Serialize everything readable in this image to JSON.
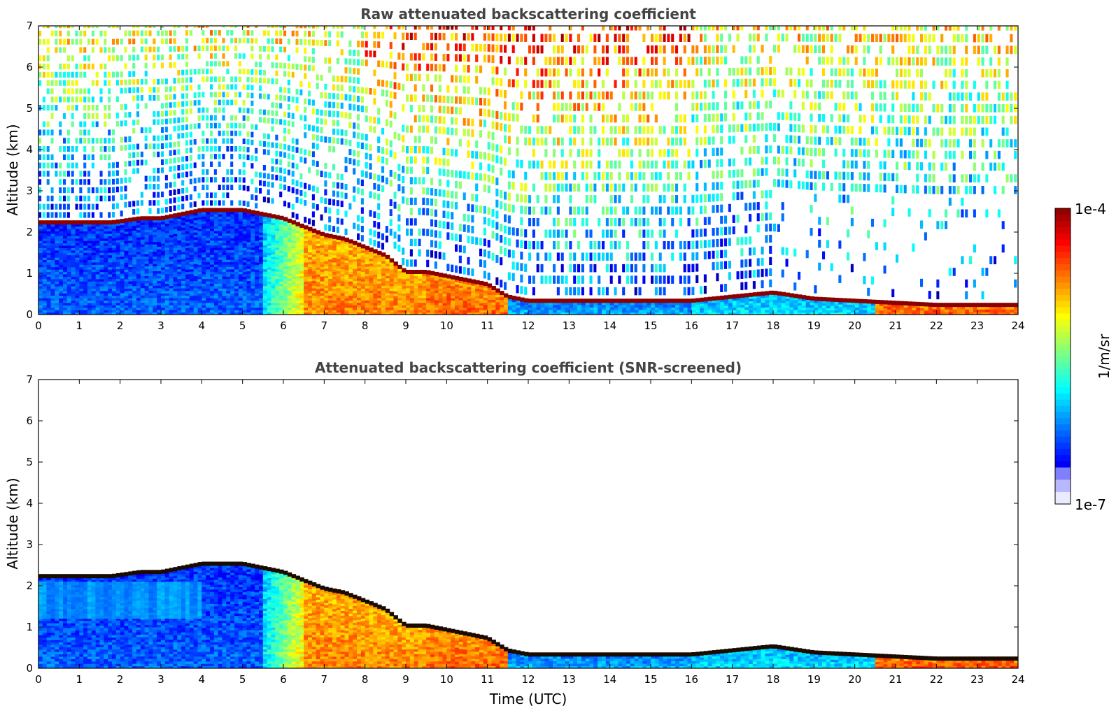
{
  "chart_data": [
    {
      "type": "heatmap",
      "title": "Raw attenuated backscattering coefficient",
      "xlabel": "",
      "ylabel": "Altitude (km)",
      "x_ticks": [
        "0",
        "1",
        "2",
        "3",
        "4",
        "5",
        "6",
        "7",
        "8",
        "9",
        "10",
        "11",
        "12",
        "13",
        "14",
        "15",
        "16",
        "17",
        "18",
        "19",
        "20",
        "21",
        "22",
        "23",
        "24"
      ],
      "y_ticks": [
        "0",
        "1",
        "2",
        "3",
        "4",
        "5",
        "6",
        "7"
      ],
      "xlim": [
        0,
        24
      ],
      "ylim": [
        0,
        7
      ],
      "colorscale": "jet",
      "screened": false,
      "cloud_layer": {
        "hours": [
          1.8,
          2.5,
          3.0,
          3.5,
          4.0,
          4.5,
          5.0,
          5.5,
          6.0,
          6.5,
          7.0,
          7.5,
          8.0,
          8.5,
          9.0,
          9.5,
          10.0,
          10.5,
          11.0,
          11.5,
          12.0,
          13.0,
          14.0,
          15.0,
          16.0,
          17.0,
          18.0,
          19.0,
          20.0,
          21.0,
          22.0,
          23.0,
          24.0
        ],
        "altitude_km": [
          2.2,
          2.3,
          2.3,
          2.4,
          2.5,
          2.5,
          2.5,
          2.4,
          2.3,
          2.1,
          1.9,
          1.8,
          1.6,
          1.4,
          1.0,
          1.0,
          0.9,
          0.8,
          0.7,
          0.4,
          0.3,
          0.3,
          0.3,
          0.3,
          0.3,
          0.4,
          0.5,
          0.35,
          0.3,
          0.25,
          0.2,
          0.2,
          0.2
        ]
      }
    },
    {
      "type": "heatmap",
      "title": "Attenuated backscattering coefficient (SNR-screened)",
      "xlabel": "Time (UTC)",
      "ylabel": "Altitude (km)",
      "x_ticks": [
        "0",
        "1",
        "2",
        "3",
        "4",
        "5",
        "6",
        "7",
        "8",
        "9",
        "10",
        "11",
        "12",
        "13",
        "14",
        "15",
        "16",
        "17",
        "18",
        "19",
        "20",
        "21",
        "22",
        "23",
        "24"
      ],
      "y_ticks": [
        "0",
        "1",
        "2",
        "3",
        "4",
        "5",
        "6",
        "7"
      ],
      "xlim": [
        0,
        24
      ],
      "ylim": [
        0,
        7
      ],
      "colorscale": "jet",
      "screened": true
    }
  ],
  "colorbar": {
    "max_label": "1e-4",
    "min_label": "1e-7",
    "unit_label": "1/m/sr",
    "colors": [
      "#ebebff",
      "#9a9aff",
      "#0000ff",
      "#0060ff",
      "#00c0ff",
      "#40ffc0",
      "#c0ff40",
      "#ffd000",
      "#ff7000",
      "#ff1000",
      "#a00000",
      "#800000"
    ]
  }
}
